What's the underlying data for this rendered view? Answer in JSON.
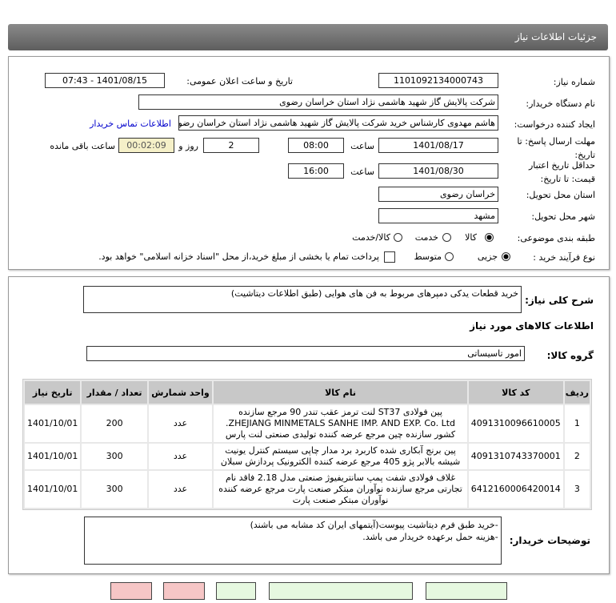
{
  "header": {
    "title": "جزئیات اطلاعات نیاز"
  },
  "form": {
    "need_number_label": "شماره نیاز:",
    "need_number": "1101092134000743",
    "announce_label": "تاریخ و ساعت اعلان عمومی:",
    "announce_value": "1401/08/15 - 07:43",
    "buyer_label": "نام دستگاه خریدار:",
    "buyer_value": "شرکت پالایش گاز شهید هاشمی نژاد   استان خراسان رضوی",
    "creator_label": "ایجاد کننده درخواست:",
    "creator_value": "هاشم مهدوی کارشناس خرید شرکت پالایش گاز شهید هاشمی نژاد   استان خراسان رضوی",
    "contact_link": "اطلاعات تماس خریدار",
    "deadline_label": "مهلت ارسال پاسخ: تا تاریخ:",
    "deadline_date": "1401/08/17",
    "time_label": "ساعت",
    "deadline_time": "08:00",
    "days": "2",
    "days_label": "روز و",
    "remaining": "00:02:09",
    "remaining_label": "ساعت باقی مانده",
    "validity_label": "حداقل تاریخ اعتبار قیمت: تا تاریخ:",
    "validity_date": "1401/08/30",
    "validity_time": "16:00",
    "province_label": "استان محل تحویل:",
    "province": "خراسان رضوی",
    "city_label": "شهر محل تحویل:",
    "city": "مشهد",
    "category_label": "طبقه بندی موضوعی:",
    "category_options": [
      "کالا",
      "خدمت",
      "کالا/خدمت"
    ],
    "category_selected": "کالا",
    "process_label": "نوع فرآیند خرید :",
    "process_options": [
      "جزیی",
      "متوسط"
    ],
    "process_selected": "جزیی",
    "treasury_text": "پرداخت تمام یا بخشی از مبلغ خرید،از محل \"اسناد خزانه اسلامی\" خواهد بود."
  },
  "details": {
    "summary_label": "شرح کلی نیاز:",
    "summary": "خرید قطعات یدکی دمپرهای مربوط به فن های هوایی (طبق اطلاعات دیتاشیت)",
    "goods_title": "اطلاعات کالاهای مورد نیاز",
    "group_label": "گروه کالا:",
    "group": "امور تاسیساتی",
    "columns": [
      "ردیف",
      "کد کالا",
      "نام کالا",
      "واحد شمارش",
      "تعداد / مقدار",
      "تاریخ نیاز"
    ],
    "rows": [
      [
        "1",
        "4091310096610005",
        "پین فولادی ST37 لنت ترمز عقب تندر 90 مرجع سازنده ZHEJIANG MINMETALS SANHE IMP. AND EXP. Co. Ltd. کشور سازنده چین مرجع عرضه کننده تولیدی صنعتی لنت پارس",
        "عدد",
        "200",
        "1401/10/01"
      ],
      [
        "2",
        "4091310743370001",
        "پین برنج آبکاری شده کاربرد برد مدار چاپی سیستم کنترل یونیت شیشه بالابر پژو 405 مرجع عرضه کننده الکترونیک پردازش سبلان",
        "عدد",
        "300",
        "1401/10/01"
      ],
      [
        "3",
        "6412160006420014",
        "غلاف فولادی شفت پمپ سانتریفیوژ صنعتی مدل 2.18 فاقد نام تجارتی مرجع سازنده نوآوران مبتکر صنعت پارت مرجع عرضه کننده نوآوران مبتکر صنعت پارت",
        "عدد",
        "300",
        "1401/10/01"
      ]
    ],
    "notes_label": "توضیحات خریدار:",
    "notes": [
      "-خرید طبق فرم دیتاشیت پیوست(آیتمهای ایران کد مشابه می باشند)",
      "-هزینه حمل برعهده خریدار می باشد."
    ]
  },
  "colors": {
    "header": "#6e6e6e",
    "link": "#0000cc",
    "remaining_bg": "#f5f0c8",
    "table_header": "#c8c8c8"
  }
}
